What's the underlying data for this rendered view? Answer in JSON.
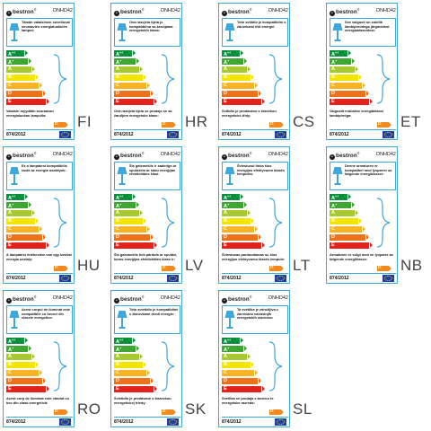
{
  "brand": "bestron",
  "model": "DNHD42",
  "regulation": "874/2012",
  "class_on_label": "D",
  "scale_classes": [
    "A++",
    "A+",
    "A",
    "B",
    "C",
    "D",
    "E"
  ],
  "scale_colors": [
    "#0a8f3c",
    "#3fa535",
    "#a6c92f",
    "#f2e500",
    "#f8b423",
    "#ee7219",
    "#e3241d"
  ],
  "icons": {
    "lamp": "table-lamp-icon",
    "brace": "brace-icon",
    "eu": "eu-flag-icon"
  },
  "labels": [
    {
      "lang": "FI",
      "top": "Tämän valaisimen soveltuvat seuraavien energialuokkien lamput:",
      "bottom": "Valaisin myydään seuraavan energialuokan lampulla:"
    },
    {
      "lang": "HR",
      "top": "Ova rasvjeta tijela je kompatibilna sa žaruljama energetskih klasa:",
      "bottom": "Ova rasvjeta tijela se prodaje se sa žaruljom energetske klase:"
    },
    {
      "lang": "CS",
      "top": "Toto svítidlo je kompatibilní s žárovkami tříd energie:",
      "bottom": "Svítidlo je prodáváno s žárovkou energetické třídy:"
    },
    {
      "lang": "ET",
      "top": "See valgusti on sobilik lambipirnidega järgmistest energiaklassidest:",
      "bottom": "Valgustit müüakse energiaklassi lambipirniga:"
    },
    {
      "lang": "HU",
      "top": "Ez a lámpatest kompatibilis izzók az energia osztályok:",
      "bottom": "A lámpatest értékesítve van egy izzóval energia osztály:"
    },
    {
      "lang": "LV",
      "top": "Šis gaismeklis ir saderīgs ar spuldzēm ar šādu enerģijas efektivitātes klasi:",
      "bottom": "Šis gaismeklis tiek pārdots ar spuldzi, kuras enerģijas efektivitātes klase ir:"
    },
    {
      "lang": "LT",
      "top": "Šviestuvui tinka šios energijos efektyvumo klasės lemputės:",
      "bottom": "Šviestuvas parduodamas su šios energijos efektyvumo klasės lempute:"
    },
    {
      "lang": "NB",
      "top": "Denne armaturen er kompatibel med lyspærer av følgende energiklasser:",
      "bottom": "Armaturen er solgt med en lyspære av følgende energiklasse:"
    },
    {
      "lang": "RO",
      "top": "Acest corpul de iluminat este compatibile cu becuri din clasele energetice:",
      "bottom": "Acest corp de iluminat este vândut cu bec din clasa energetică:"
    },
    {
      "lang": "SK",
      "top": "Toto svietidlo je kompatibilné s žiarovkami triedi energie:",
      "bottom": "Svietidlo je predávané s žiarovkou energetickej triedy:"
    },
    {
      "lang": "SL",
      "top": "Ta svetilka je združljiva z žarnicami naslednjih energetskih razredov:",
      "bottom": "Svetilka se prodaja z žarnico te energetske razreda:"
    }
  ]
}
